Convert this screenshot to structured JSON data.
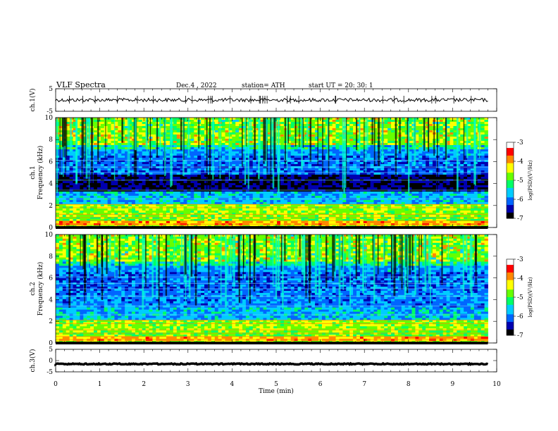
{
  "header": {
    "title": "VLF  Spectra",
    "date": "Dec.4  , 2022",
    "station": "station= ATH",
    "start_ut": "start  UT  =    20: 30: 1"
  },
  "chart_data": [
    {
      "type": "line",
      "panel": "ch1-waveform",
      "ylabel": "ch.1(V)",
      "ylim": [
        -5,
        5
      ],
      "yticks": [
        "5",
        "-5"
      ],
      "xlim": [
        0,
        10
      ],
      "trace_level": 0,
      "data_end": 9.8,
      "color": "#000000"
    },
    {
      "type": "heatmap",
      "panel": "ch1-spectrogram",
      "ylabel": "ch.1\nFrequency  (kHz)",
      "ylim": [
        0,
        10
      ],
      "yticks": [
        "0",
        "2",
        "4",
        "6",
        "8",
        "10"
      ],
      "xlim": [
        0,
        10
      ],
      "data_end": 9.8,
      "colorbar": {
        "label": "log(PSD)(V²/Hz)",
        "range": [
          -7,
          -3
        ],
        "ticks": [
          "-3",
          "-4",
          "-5",
          "-6",
          "-7"
        ],
        "colors": [
          "#000000",
          "#0000b0",
          "#0066ff",
          "#00ccff",
          "#00ff66",
          "#66ff00",
          "#ffff00",
          "#ff8800",
          "#ff0000",
          "#ffffff"
        ]
      }
    },
    {
      "type": "heatmap",
      "panel": "ch2-spectrogram",
      "ylabel": "ch.2\nFrequency  (kHz)",
      "ylim": [
        0,
        10
      ],
      "yticks": [
        "0",
        "2",
        "4",
        "6",
        "8",
        "10"
      ],
      "xlim": [
        0,
        10
      ],
      "data_end": 9.8,
      "colorbar": {
        "label": "log(PSD)(V²/Hz)",
        "range": [
          -7,
          -3
        ],
        "ticks": [
          "-3",
          "-4",
          "-5",
          "-6",
          "-7"
        ],
        "colors": [
          "#000000",
          "#0000b0",
          "#0066ff",
          "#00ccff",
          "#00ff66",
          "#66ff00",
          "#ffff00",
          "#ff8800",
          "#ff0000",
          "#ffffff"
        ]
      }
    },
    {
      "type": "line",
      "panel": "ch3-waveform",
      "ylabel": "ch.3(V)",
      "ylim": [
        -5,
        5
      ],
      "yticks": [
        "5",
        "0",
        "-5"
      ],
      "xlim": [
        0,
        10
      ],
      "trace_level": -1.5,
      "data_end": 9.8,
      "color": "#000000"
    }
  ],
  "xaxis": {
    "label": "Time  (min)",
    "ticks": [
      "0",
      "1",
      "2",
      "3",
      "4",
      "5",
      "6",
      "7",
      "8",
      "9",
      "10"
    ]
  }
}
